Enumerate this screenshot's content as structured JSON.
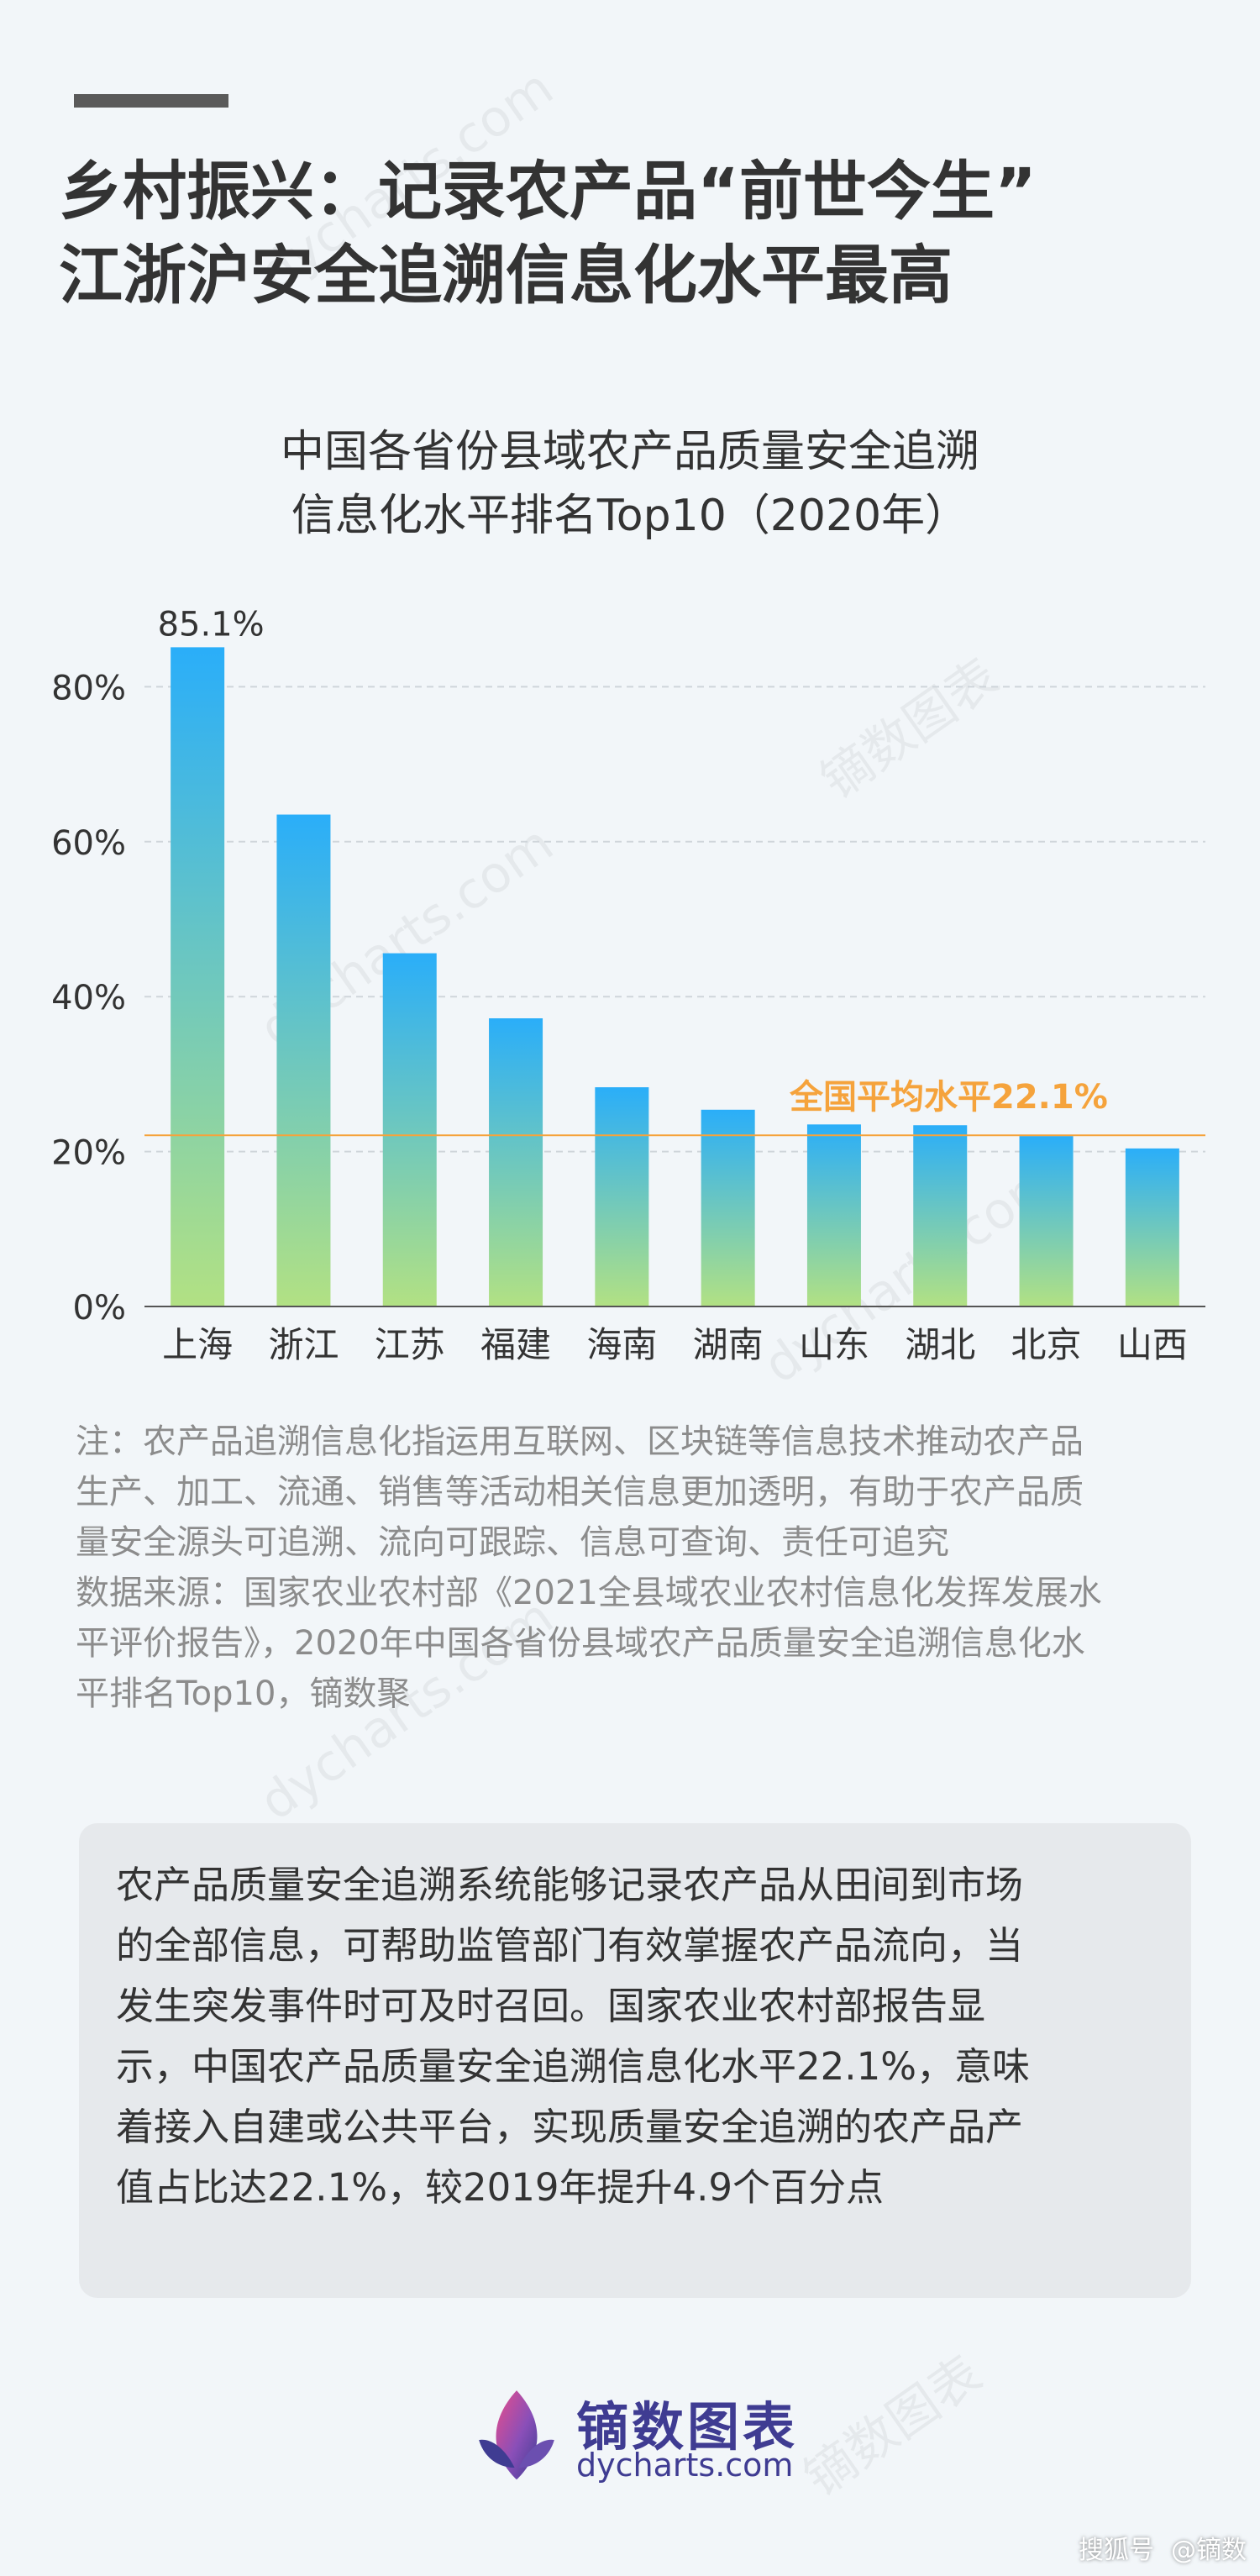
{
  "headline": {
    "line1": "乡村振兴：记录农产品“前世今生”",
    "line2": "江浙沪安全追溯信息化水平最高"
  },
  "chart_title": {
    "line1": "中国各省份县域农产品质量安全追溯",
    "line2": "信息化水平排名Top10（2020年）"
  },
  "chart_data": {
    "type": "bar",
    "title": "中国各省份县域农产品质量安全追溯信息化水平排名Top10（2020年）",
    "categories": [
      "上海",
      "浙江",
      "江苏",
      "福建",
      "海南",
      "湖南",
      "山东",
      "湖北",
      "北京",
      "山西"
    ],
    "values": [
      85.1,
      63.5,
      45.6,
      37.2,
      28.3,
      25.4,
      23.5,
      23.4,
      22.0,
      20.4
    ],
    "unit": "%",
    "ylim": [
      0,
      85
    ],
    "yticks": [
      0,
      20,
      40,
      60,
      80
    ],
    "ytick_labels": [
      "0%",
      "20%",
      "40%",
      "60%",
      "80%"
    ],
    "grid": true,
    "data_labels": [
      {
        "category": "上海",
        "text": "85.1%"
      }
    ],
    "reference_line": {
      "value": 22.1,
      "label": "全国平均水平22.1%",
      "color": "#f5a33c"
    },
    "bar_gradient": {
      "top": "#2aaef9",
      "bottom": "#b2e183"
    }
  },
  "notes": [
    "注：农产品追溯信息化指运用互联网、区块链等信息技术推动农产品",
    "生产、加工、流通、销售等活动相关信息更加透明，有助于农产品质",
    "量安全源头可追溯、流向可跟踪、信息可查询、责任可追究",
    "数据来源：国家农业农村部《2021全县域农业农村信息化发挥发展水",
    "平评价报告》，2020年中国各省份县域农产品质量安全追溯信息化水",
    "平排名Top10，镝数聚"
  ],
  "summary": [
    "农产品质量安全追溯系统能够记录农产品从田间到市场",
    "的全部信息，可帮助监管部门有效掌握农产品流向，当",
    "发生突发事件时可及时召回。国家农业农村部报告显",
    "示，中国农产品质量安全追溯信息化水平22.1%，意味",
    "着接入自建或公共平台，实现质量安全追溯的农产品产",
    "值占比达22.1%，较2019年提升4.9个百分点"
  ],
  "logo": {
    "name": "镝数图表",
    "url": "dycharts.com",
    "icon": "dycharts-logo-icon",
    "color": "#3f3c92"
  },
  "credit": {
    "platform": "搜狐号",
    "author": "@镝数"
  },
  "watermark": {
    "text": "dycharts.com",
    "brand": "镝数图表"
  }
}
